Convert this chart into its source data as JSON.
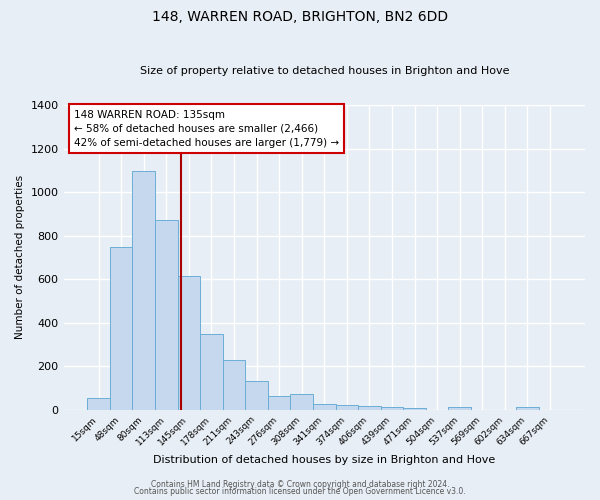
{
  "title": "148, WARREN ROAD, BRIGHTON, BN2 6DD",
  "subtitle": "Size of property relative to detached houses in Brighton and Hove",
  "xlabel": "Distribution of detached houses by size in Brighton and Hove",
  "ylabel": "Number of detached properties",
  "categories": [
    "15sqm",
    "48sqm",
    "80sqm",
    "113sqm",
    "145sqm",
    "178sqm",
    "211sqm",
    "243sqm",
    "276sqm",
    "308sqm",
    "341sqm",
    "374sqm",
    "406sqm",
    "439sqm",
    "471sqm",
    "504sqm",
    "537sqm",
    "569sqm",
    "602sqm",
    "634sqm",
    "667sqm"
  ],
  "values": [
    55,
    750,
    1095,
    870,
    615,
    348,
    228,
    133,
    65,
    72,
    25,
    20,
    18,
    13,
    10,
    0,
    12,
    0,
    0,
    12,
    0
  ],
  "bar_color": "#c5d8ed",
  "bar_edge_color": "#6aaed6",
  "bg_color": "#e8eef5",
  "grid_color": "#ffffff",
  "vline_x_index": 4,
  "vline_color": "#aa0000",
  "annotation_line1": "148 WARREN ROAD: 135sqm",
  "annotation_line2": "← 58% of detached houses are smaller (2,466)",
  "annotation_line3": "42% of semi-detached houses are larger (1,779) →",
  "annotation_box_color": "#ffffff",
  "annotation_box_edge": "#cc0000",
  "ylim": [
    0,
    1400
  ],
  "yticks": [
    0,
    200,
    400,
    600,
    800,
    1000,
    1200,
    1400
  ],
  "footer1": "Contains HM Land Registry data © Crown copyright and database right 2024.",
  "footer2": "Contains public sector information licensed under the Open Government Licence v3.0."
}
